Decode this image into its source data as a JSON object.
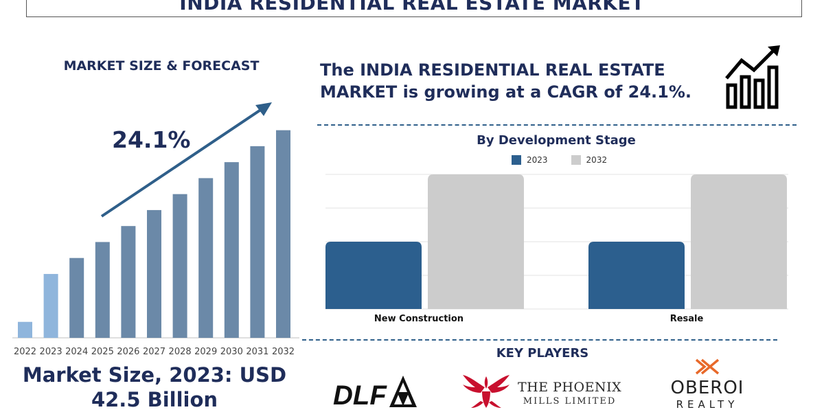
{
  "title": "INDIA RESIDENTIAL REAL ESTATE MARKET",
  "left_panel": {
    "heading": "MARKET SIZE & FORECAST",
    "growth_label": "24.1%",
    "market_size_line1": "Market Size, 2023: USD",
    "market_size_line2": "42.5 Billion"
  },
  "headline": {
    "line1": "The INDIA RESIDENTIAL REAL ESTATE",
    "line2": "MARKET is growing at a CAGR of 24.1%."
  },
  "key_players": {
    "heading": "KEY PLAYERS",
    "logos": [
      {
        "name": "DLF",
        "icon": "dlf-logo"
      },
      {
        "name": "THE PHOENIX",
        "sub": "MILLS LIMITED",
        "icon": "phoenix-bird-logo"
      },
      {
        "name": "OBEROI",
        "sub": "REALTY",
        "icon": "oberoi-logo"
      }
    ]
  },
  "colors": {
    "navy": "#1f2d5a",
    "bar_dark": "#6b89a8",
    "bar_light": "#8fb5dc",
    "series_2023": "#2c5f8e",
    "series_2032": "#cccccc",
    "phoenix_red": "#c8102e",
    "oberoi_orange": "#e8692a"
  },
  "chart_data": [
    {
      "type": "bar",
      "categories": [
        "2022",
        "2023",
        "2024",
        "2025",
        "2026",
        "2027",
        "2028",
        "2029",
        "2030",
        "2031",
        "2032"
      ],
      "values": [
        1,
        4,
        5,
        6,
        7,
        8,
        9,
        10,
        11,
        12,
        13
      ],
      "highlight": [
        "2022",
        "2023"
      ],
      "annotation": "24.1%",
      "ylim": [
        0,
        13.5
      ]
    },
    {
      "type": "bar",
      "title": "By Development Stage",
      "categories": [
        "New Construction",
        "Resale"
      ],
      "series": [
        {
          "name": "2023",
          "values": [
            2,
            2
          ]
        },
        {
          "name": "2032",
          "values": [
            4,
            4
          ]
        }
      ],
      "ylim": [
        0,
        4
      ],
      "grid": true,
      "legend": "top-center"
    }
  ]
}
